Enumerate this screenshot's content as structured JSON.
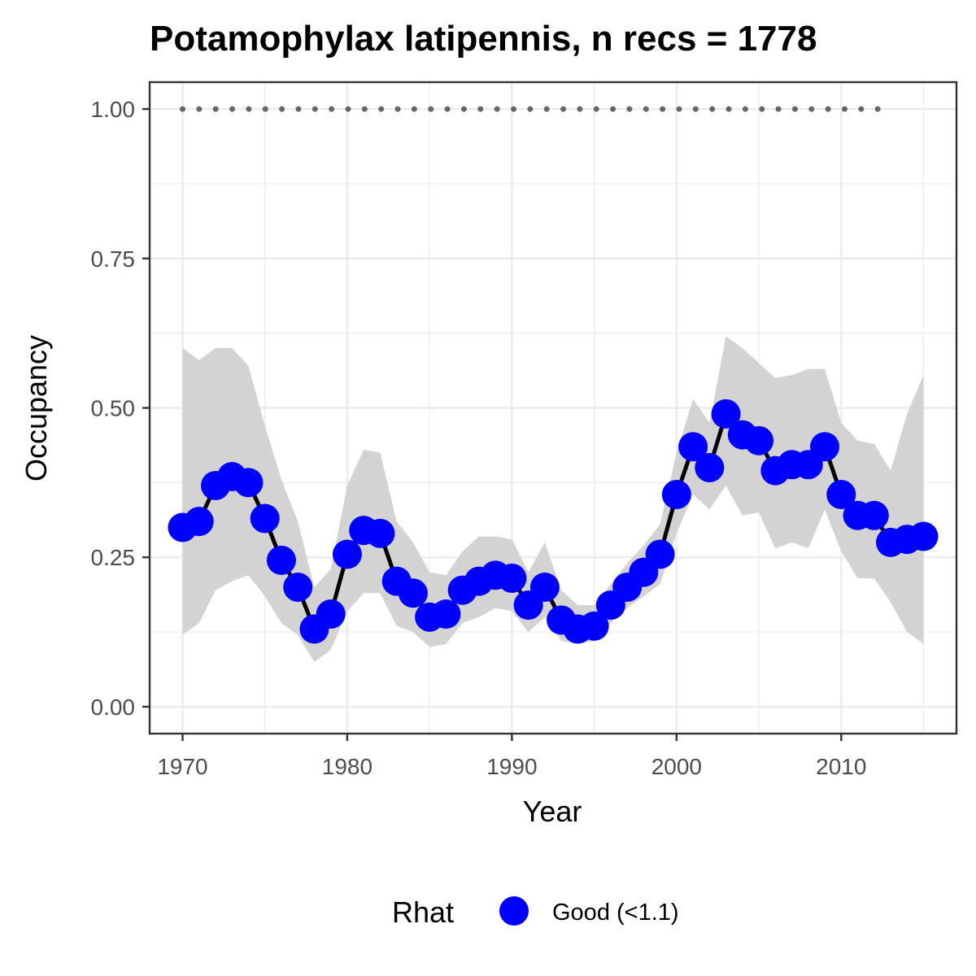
{
  "chart_data": {
    "type": "line",
    "title": "Potamophylax latipennis, n recs = 1778",
    "xlabel": "Year",
    "ylabel": "Occupancy",
    "xlim": [
      1968,
      2017
    ],
    "ylim": [
      -0.045,
      1.045
    ],
    "x_ticks": [
      1970,
      1980,
      1990,
      2000,
      2010
    ],
    "x_tick_labels": [
      "1970",
      "1980",
      "1990",
      "2000",
      "2010"
    ],
    "y_ticks": [
      0,
      0.25,
      0.5,
      0.75,
      1.0
    ],
    "y_tick_labels": [
      "0.00",
      "0.25",
      "0.50",
      "0.75",
      "1.00"
    ],
    "grid": true,
    "legend": {
      "position": "bottom",
      "title": "Rhat",
      "entries": [
        {
          "label": "Good (<1.1)",
          "color": "#0000ff"
        }
      ]
    },
    "colors": {
      "points": "#0000ff",
      "line": "#000000",
      "ribbon": "#d3d3d3",
      "dotted": "#666666",
      "panel_border": "#333333",
      "grid": "#ebebeb"
    },
    "x": [
      1970,
      1971,
      1972,
      1973,
      1974,
      1975,
      1976,
      1977,
      1978,
      1979,
      1980,
      1981,
      1982,
      1983,
      1984,
      1985,
      1986,
      1987,
      1988,
      1989,
      1990,
      1991,
      1992,
      1993,
      1994,
      1995,
      1996,
      1997,
      1998,
      1999,
      2000,
      2001,
      2002,
      2003,
      2004,
      2005,
      2006,
      2007,
      2008,
      2009,
      2010,
      2011,
      2012,
      2013,
      2014,
      2015
    ],
    "series": [
      {
        "name": "Good (<1.1)",
        "values": [
          0.3,
          0.31,
          0.37,
          0.385,
          0.375,
          0.315,
          0.245,
          0.2,
          0.13,
          0.155,
          0.255,
          0.295,
          0.29,
          0.21,
          0.19,
          0.15,
          0.155,
          0.195,
          0.21,
          0.22,
          0.215,
          0.17,
          0.2,
          0.145,
          0.13,
          0.135,
          0.17,
          0.2,
          0.225,
          0.255,
          0.355,
          0.435,
          0.4,
          0.49,
          0.455,
          0.445,
          0.395,
          0.405,
          0.405,
          0.435,
          0.355,
          0.32,
          0.32,
          0.275,
          0.28,
          0.285
        ],
        "lower": [
          0.12,
          0.14,
          0.195,
          0.21,
          0.22,
          0.185,
          0.14,
          0.12,
          0.075,
          0.095,
          0.16,
          0.19,
          0.19,
          0.135,
          0.125,
          0.1,
          0.105,
          0.14,
          0.15,
          0.165,
          0.16,
          0.125,
          0.15,
          0.11,
          0.105,
          0.11,
          0.14,
          0.165,
          0.185,
          0.205,
          0.29,
          0.355,
          0.33,
          0.37,
          0.32,
          0.325,
          0.265,
          0.275,
          0.265,
          0.33,
          0.26,
          0.215,
          0.215,
          0.175,
          0.125,
          0.105
        ],
        "upper": [
          0.6,
          0.58,
          0.6,
          0.6,
          0.57,
          0.47,
          0.38,
          0.31,
          0.2,
          0.23,
          0.37,
          0.43,
          0.425,
          0.31,
          0.275,
          0.225,
          0.22,
          0.26,
          0.285,
          0.285,
          0.28,
          0.225,
          0.275,
          0.195,
          0.17,
          0.17,
          0.205,
          0.24,
          0.27,
          0.305,
          0.425,
          0.515,
          0.475,
          0.62,
          0.6,
          0.575,
          0.55,
          0.555,
          0.565,
          0.565,
          0.475,
          0.445,
          0.44,
          0.395,
          0.49,
          0.555
        ]
      }
    ],
    "reference_line": {
      "style": "dotted",
      "value": 1.0,
      "x_start": 1970,
      "x_end": 2013
    }
  }
}
